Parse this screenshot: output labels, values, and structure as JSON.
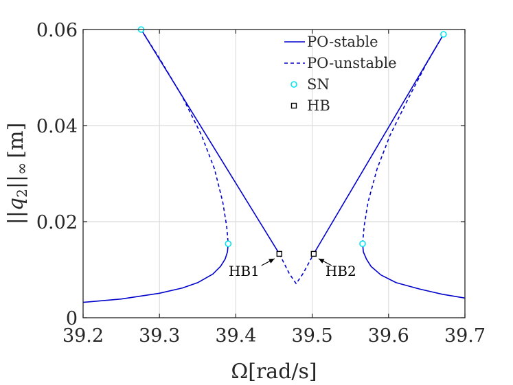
{
  "chart_data": {
    "type": "line",
    "xlabel": "Ω[rad/s]",
    "ylabel": "||q2||∞ [m]",
    "ylabel_parts": {
      "norm_open": "||",
      "var": "q",
      "sub": "2",
      "norm_close": "||",
      "inf": "∞",
      "unit": "[m]"
    },
    "xlim": [
      39.2,
      39.7
    ],
    "ylim": [
      0,
      0.06
    ],
    "grid": true,
    "xticks": [
      39.2,
      39.3,
      39.4,
      39.5,
      39.6,
      39.7
    ],
    "xtick_labels": [
      "39.2",
      "39.3",
      "39.4",
      "39.5",
      "39.6",
      "39.7"
    ],
    "yticks": [
      0,
      0.02,
      0.04,
      0.06
    ],
    "ytick_labels": [
      "0",
      "0.02",
      "0.04",
      "0.06"
    ],
    "legend_position": "top-right",
    "series": [
      {
        "name": "PO-stable",
        "style": "solid",
        "color": "#0000CC",
        "segments": [
          [
            [
              39.2,
              0.0032
            ],
            [
              39.25,
              0.0039
            ],
            [
              39.3,
              0.0051
            ],
            [
              39.33,
              0.0062
            ],
            [
              39.35,
              0.0073
            ],
            [
              39.37,
              0.0091
            ],
            [
              39.38,
              0.0107
            ],
            [
              39.386,
              0.0122
            ],
            [
              39.389,
              0.0137
            ],
            [
              39.39,
              0.0154
            ]
          ],
          [
            [
              39.276,
              0.06
            ],
            [
              39.457,
              0.0133
            ]
          ],
          [
            [
              39.502,
              0.0133
            ],
            [
              39.672,
              0.059
            ]
          ],
          [
            [
              39.566,
              0.0154
            ],
            [
              39.567,
              0.0137
            ],
            [
              39.571,
              0.0122
            ],
            [
              39.577,
              0.0107
            ],
            [
              39.59,
              0.0089
            ],
            [
              39.61,
              0.0073
            ],
            [
              39.64,
              0.006
            ],
            [
              39.67,
              0.0049
            ],
            [
              39.7,
              0.0041
            ]
          ]
        ]
      },
      {
        "name": "PO-unstable",
        "style": "dashed",
        "color": "#0000CC",
        "segments": [
          [
            [
              39.276,
              0.06
            ],
            [
              39.3,
              0.054
            ],
            [
              39.33,
              0.046
            ],
            [
              39.355,
              0.038
            ],
            [
              39.372,
              0.031
            ],
            [
              39.383,
              0.024
            ],
            [
              39.388,
              0.019
            ],
            [
              39.39,
              0.0154
            ]
          ],
          [
            [
              39.457,
              0.0133
            ],
            [
              39.47,
              0.0092
            ],
            [
              39.479,
              0.0071
            ],
            [
              39.488,
              0.0092
            ],
            [
              39.502,
              0.0133
            ]
          ],
          [
            [
              39.566,
              0.0154
            ],
            [
              39.568,
              0.019
            ],
            [
              39.573,
              0.024
            ],
            [
              39.585,
              0.031
            ],
            [
              39.602,
              0.038
            ],
            [
              39.627,
              0.046
            ],
            [
              39.65,
              0.053
            ],
            [
              39.672,
              0.059
            ]
          ]
        ]
      },
      {
        "name": "SN",
        "style": "marker-circle",
        "color": "#00E5EE",
        "points": [
          [
            39.276,
            0.06
          ],
          [
            39.39,
            0.0154
          ],
          [
            39.566,
            0.0154
          ],
          [
            39.672,
            0.059
          ]
        ]
      },
      {
        "name": "HB",
        "style": "marker-square",
        "color": "#000000",
        "points": [
          [
            39.457,
            0.0133
          ],
          [
            39.502,
            0.0133
          ]
        ]
      }
    ],
    "annotations": [
      {
        "text": "HB1",
        "target": [
          39.457,
          0.0133
        ],
        "direction": "lower-left"
      },
      {
        "text": "HB2",
        "target": [
          39.502,
          0.0133
        ],
        "direction": "lower-right"
      }
    ]
  }
}
